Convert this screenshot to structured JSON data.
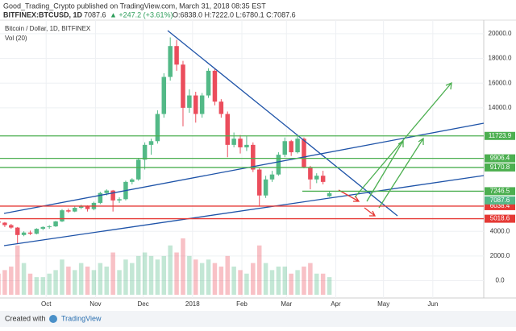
{
  "header": {
    "publisher": "Good_Trading_Crypto published on TradingView.com, March 31, 2018 08:35 EST",
    "symbol": "BITFINEX:BTCUSD, 1D",
    "price": "7087.6",
    "change": "▲ +247.2 (+3.61%)",
    "ohlc": "O:6838.0 H:7222.0 L:6780.1 C:7087.6"
  },
  "footer": {
    "created": "Created with",
    "brand": "TradingView"
  },
  "chart_data": {
    "type": "candlestick",
    "title": "Bitcoin / Dollar, 1D, BITFINEX",
    "volume_label": "Vol (20)",
    "x": [
      0,
      4,
      8,
      12,
      16,
      20,
      24,
      28,
      32,
      36,
      40,
      44,
      48,
      52,
      56,
      60,
      64,
      68,
      72,
      76,
      80,
      84,
      88,
      92,
      96,
      100,
      104,
      108,
      112,
      116,
      120,
      124,
      128,
      132,
      136,
      140,
      144,
      148,
      152,
      156,
      160,
      164,
      168,
      172,
      176,
      180,
      184,
      188,
      192,
      196,
      200,
      204,
      208
    ],
    "open": [
      4800,
      4700,
      4500,
      4300,
      3700,
      3900,
      3800,
      4200,
      4350,
      4400,
      4800,
      5700,
      5600,
      5900,
      6000,
      5800,
      6300,
      7100,
      7300,
      6500,
      6600,
      8000,
      8200,
      9800,
      11000,
      11300,
      13500,
      16500,
      19000,
      17500,
      14000,
      15000,
      13500,
      15000,
      17000,
      14500,
      13500,
      11000,
      11500,
      10800,
      11000,
      9000,
      6900,
      8200,
      8600,
      10200,
      11300,
      10400,
      11500,
      9200,
      8200,
      8500,
      6838.0
    ],
    "high": [
      4950,
      4750,
      4600,
      4350,
      4000,
      4050,
      4250,
      4400,
      4500,
      4850,
      5800,
      5850,
      6000,
      6150,
      6100,
      6400,
      7200,
      7400,
      7350,
      6750,
      8100,
      8300,
      9900,
      11200,
      11500,
      13800,
      16800,
      19700,
      19500,
      17800,
      15500,
      15300,
      15200,
      17200,
      17200,
      14700,
      13700,
      12000,
      11800,
      11700,
      11200,
      9100,
      8500,
      8900,
      10400,
      11600,
      11400,
      11700,
      11600,
      9300,
      8700,
      8900,
      7222.0
    ],
    "low": [
      4600,
      4350,
      4200,
      3000,
      3600,
      3700,
      3750,
      4100,
      4200,
      4350,
      4750,
      5500,
      5550,
      5800,
      5600,
      5700,
      6200,
      6900,
      5600,
      6300,
      6500,
      7800,
      8100,
      9000,
      10200,
      11100,
      13200,
      16200,
      17000,
      12500,
      13600,
      12800,
      13200,
      14800,
      14200,
      13200,
      10000,
      10800,
      10300,
      10500,
      8800,
      6000,
      6700,
      8000,
      8500,
      10000,
      10100,
      10300,
      9100,
      7400,
      7900,
      7800,
      6780.1
    ],
    "close": [
      4700,
      4500,
      4300,
      3700,
      3900,
      3800,
      4200,
      4350,
      4400,
      4800,
      5700,
      5600,
      5900,
      6000,
      5800,
      6300,
      7100,
      7300,
      6500,
      6600,
      8000,
      8200,
      9800,
      11000,
      11300,
      13500,
      16500,
      19000,
      17500,
      14000,
      15000,
      13500,
      15000,
      17000,
      14500,
      13500,
      11000,
      11500,
      10800,
      11000,
      9000,
      6900,
      8200,
      8600,
      10200,
      11300,
      10400,
      11500,
      9200,
      8200,
      8500,
      8000,
      7087.6
    ],
    "volume": [
      30,
      35,
      40,
      70,
      45,
      30,
      25,
      25,
      30,
      35,
      50,
      40,
      35,
      45,
      40,
      35,
      45,
      40,
      60,
      35,
      50,
      45,
      55,
      60,
      55,
      50,
      55,
      70,
      60,
      80,
      55,
      50,
      45,
      50,
      45,
      40,
      55,
      40,
      35,
      30,
      45,
      70,
      45,
      35,
      40,
      40,
      30,
      35,
      40,
      45,
      30,
      30,
      25
    ],
    "up_color": "#53b987",
    "down_color": "#eb4d5c",
    "levels": [
      {
        "value": 11723.9,
        "color": "#4caf50"
      },
      {
        "value": 9906.4,
        "color": "#4caf50"
      },
      {
        "value": 9170.8,
        "color": "#4caf50"
      },
      {
        "value": 7246.5,
        "color": "#4caf50"
      },
      {
        "value": 6038.4,
        "color": "#e53935"
      },
      {
        "value": 5018.6,
        "color": "#e53935"
      }
    ],
    "last_price": 7087.6,
    "xlim": [
      1,
      305
    ],
    "ylim": [
      -1400,
      21100
    ],
    "xticks": [
      {
        "value": 30,
        "label": "Oct"
      },
      {
        "value": 61,
        "label": "Nov"
      },
      {
        "value": 91,
        "label": "Dec"
      },
      {
        "value": 122,
        "label": "2018"
      },
      {
        "value": 153,
        "label": "Feb"
      },
      {
        "value": 181,
        "label": "Mar"
      },
      {
        "value": 212,
        "label": "Apr"
      },
      {
        "value": 242,
        "label": "May"
      },
      {
        "value": 273,
        "label": "Jun"
      }
    ],
    "yticks": [
      {
        "value": 0,
        "label": "0.0"
      },
      {
        "value": 2000,
        "label": "2000.0"
      },
      {
        "value": 4000,
        "label": "4000.0"
      },
      {
        "value": 14000,
        "label": "14000.0"
      },
      {
        "value": 16000,
        "label": "16000.0"
      },
      {
        "value": 18000,
        "label": "18000.0"
      },
      {
        "value": 20000,
        "label": "20000.0"
      }
    ]
  }
}
